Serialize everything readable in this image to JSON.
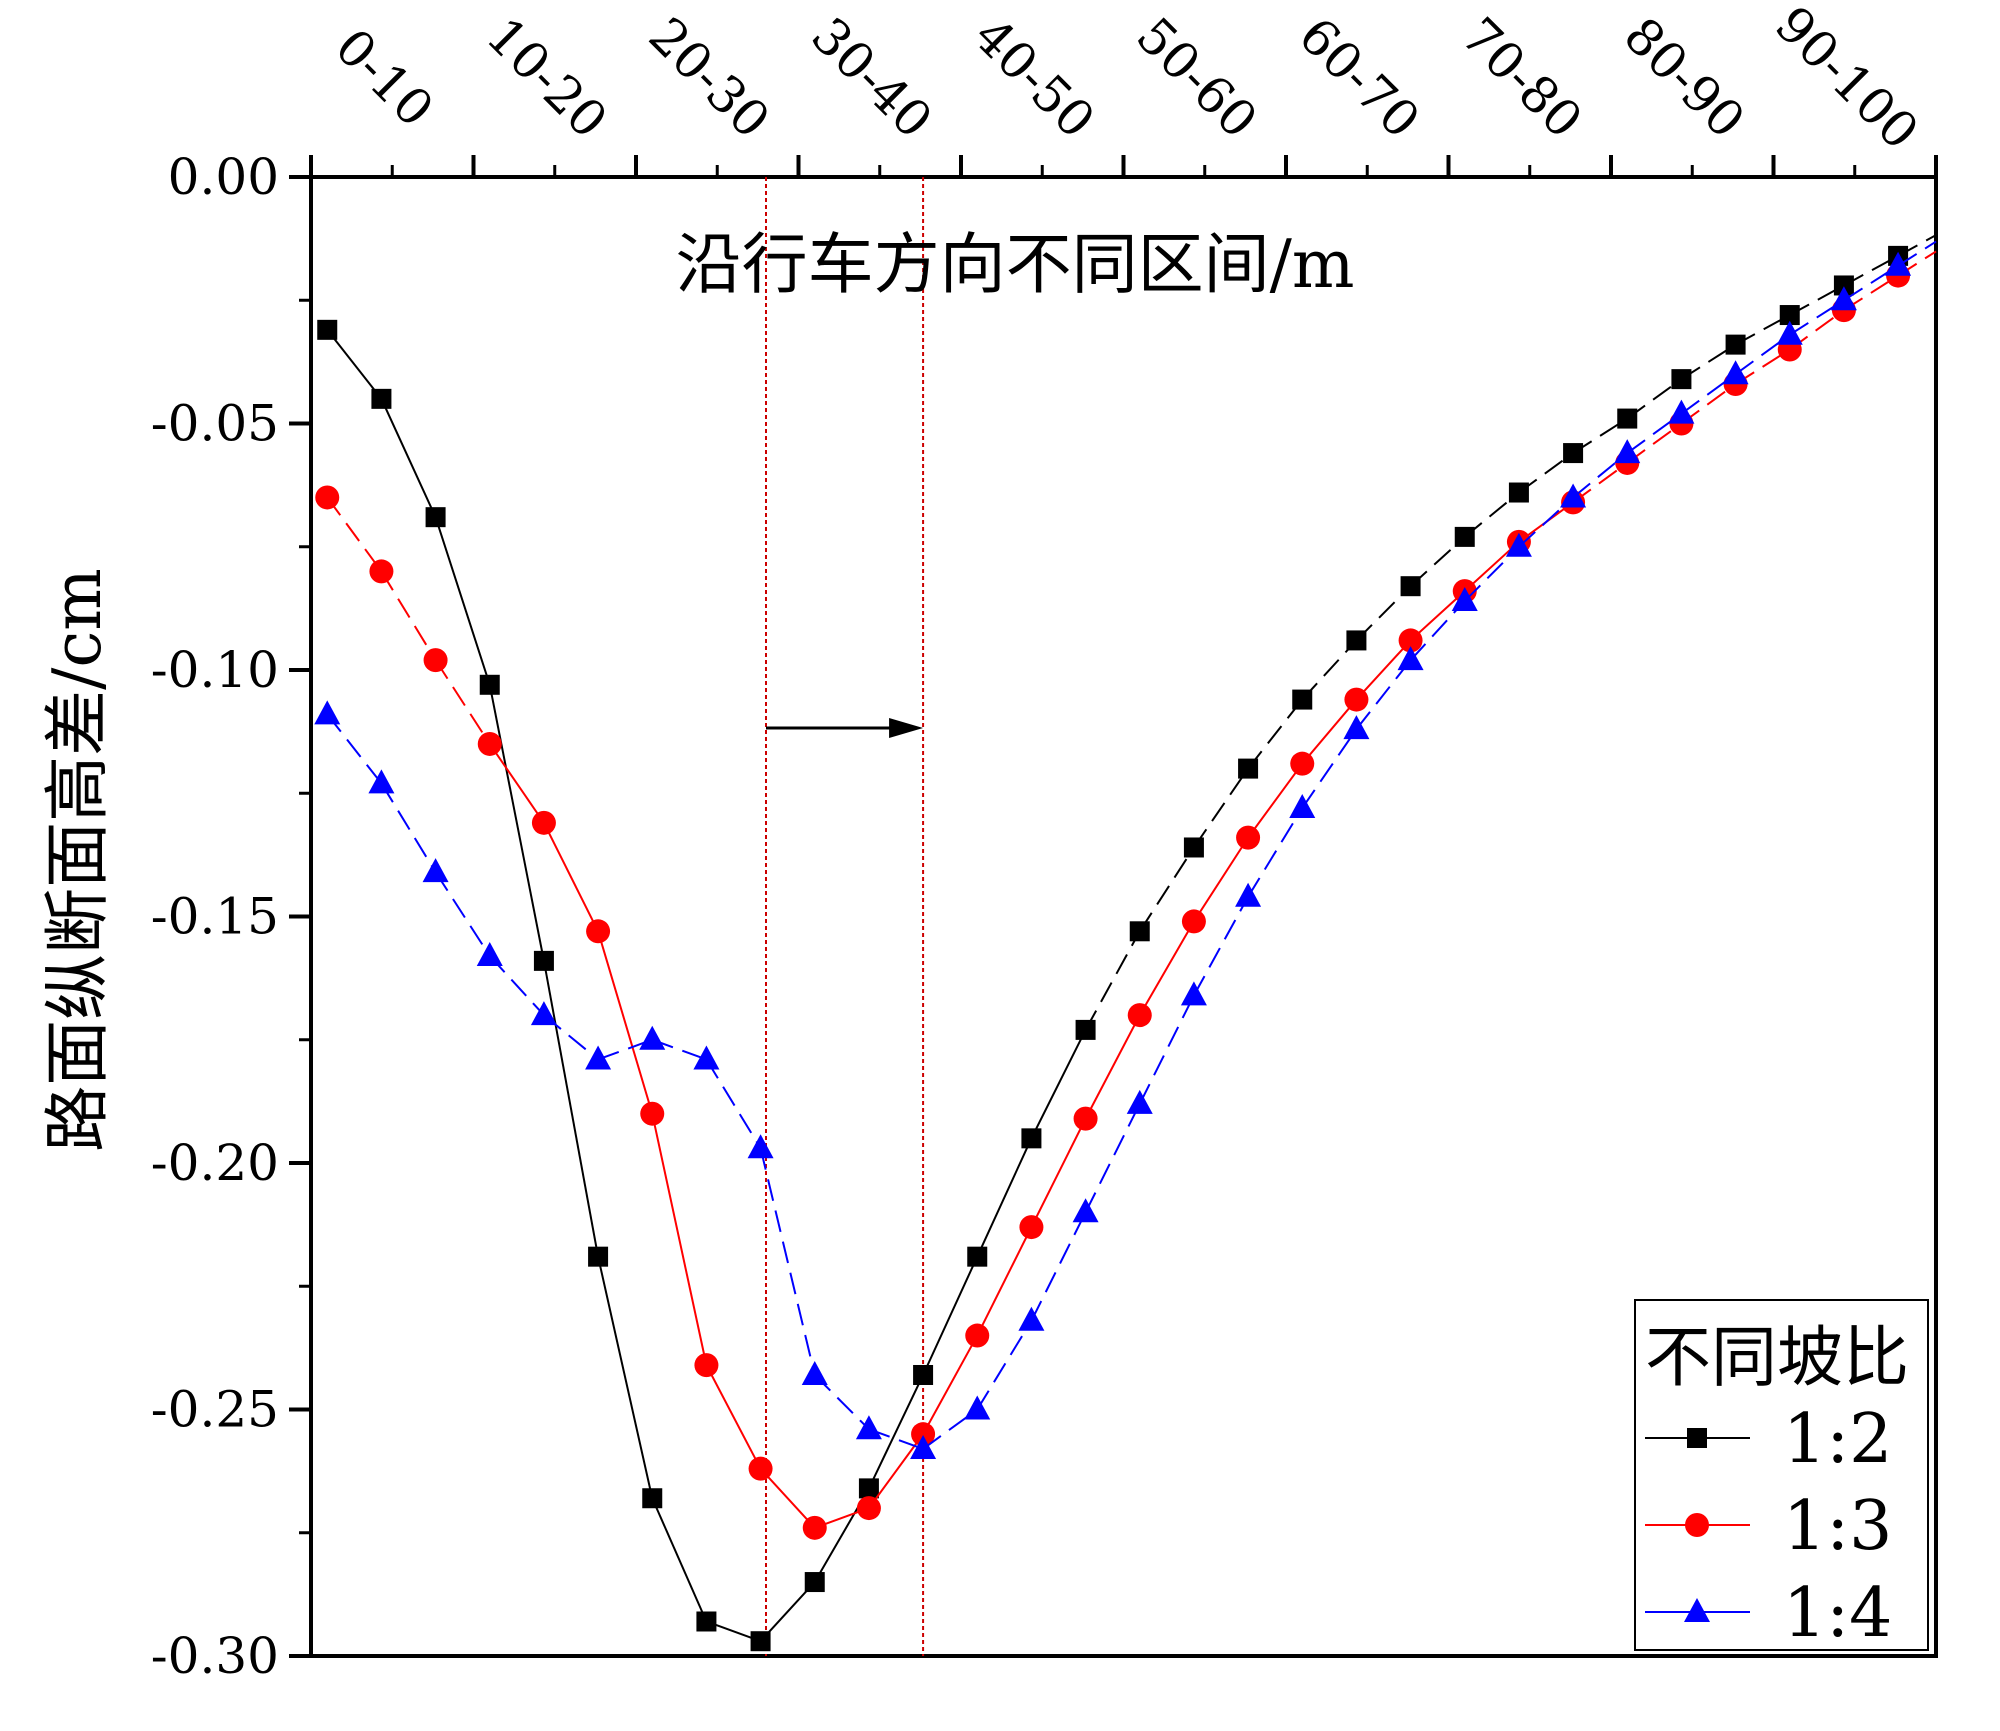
{
  "chart_data": {
    "type": "line",
    "xlabel": "沿行车方向不同区间/m",
    "ylabel": "路面纵断面高差/cm",
    "x_axis_position": "top",
    "x_tick_labels": [
      "0-10",
      "10-20",
      "20-30",
      "30-40",
      "40-50",
      "50-60",
      "60-70",
      "70-80",
      "80-90",
      "90-100"
    ],
    "xlim": [
      0,
      30
    ],
    "ylim": [
      -0.3,
      0.0
    ],
    "y_ticks": [
      0.0,
      -0.05,
      -0.1,
      -0.15,
      -0.2,
      -0.25,
      -0.3
    ],
    "y_tick_labels": [
      "0.00",
      "-0.05",
      "-0.10",
      "-0.15",
      "-0.20",
      "-0.25",
      "-0.30"
    ],
    "grid": false,
    "reference_lines": [
      8.4,
      11.3
    ],
    "annotation": "arrow pointing right between reference lines",
    "legend": {
      "title": "不同坡比",
      "placement": "bottom-right"
    },
    "x": [
      0.3,
      1.3,
      2.3,
      3.3,
      4.3,
      5.3,
      6.3,
      7.3,
      8.3,
      9.3,
      10.3,
      11.3,
      12.3,
      13.3,
      14.3,
      15.3,
      16.3,
      17.3,
      18.3,
      19.3,
      20.3,
      21.3,
      22.3,
      23.3,
      24.3,
      25.3,
      26.3,
      27.3,
      28.3,
      29.3
    ],
    "series": [
      {
        "name": "1:2",
        "marker": "square",
        "color": "#000000",
        "dash": "solid-then-dashed",
        "values": [
          -0.031,
          -0.045,
          -0.069,
          -0.103,
          -0.159,
          -0.219,
          -0.268,
          -0.293,
          -0.297,
          -0.285,
          -0.266,
          -0.243,
          -0.219,
          -0.195,
          -0.173,
          -0.153,
          -0.136,
          -0.12,
          -0.106,
          -0.094,
          -0.083,
          -0.073,
          -0.064,
          -0.056,
          -0.049,
          -0.041,
          -0.034,
          -0.028,
          -0.022,
          -0.016
        ]
      },
      {
        "name": "1:3",
        "marker": "circle",
        "color": "#ff0000",
        "dash": "dashed-then-solid",
        "values": [
          -0.065,
          -0.08,
          -0.098,
          -0.115,
          -0.131,
          -0.153,
          -0.19,
          -0.241,
          -0.262,
          -0.274,
          -0.27,
          -0.255,
          -0.235,
          -0.213,
          -0.191,
          -0.17,
          -0.151,
          -0.134,
          -0.119,
          -0.106,
          -0.094,
          -0.084,
          -0.074,
          -0.066,
          -0.058,
          -0.05,
          -0.042,
          -0.035,
          -0.027,
          -0.02
        ]
      },
      {
        "name": "1:4",
        "marker": "triangle",
        "color": "#0000ff",
        "dash": "dashed",
        "values": [
          -0.109,
          -0.123,
          -0.141,
          -0.158,
          -0.17,
          -0.179,
          -0.175,
          -0.179,
          -0.197,
          -0.243,
          -0.254,
          -0.258,
          -0.25,
          -0.232,
          -0.21,
          -0.188,
          -0.166,
          -0.146,
          -0.128,
          -0.112,
          -0.098,
          -0.086,
          -0.075,
          -0.065,
          -0.056,
          -0.048,
          -0.04,
          -0.032,
          -0.025,
          -0.018
        ]
      }
    ]
  }
}
